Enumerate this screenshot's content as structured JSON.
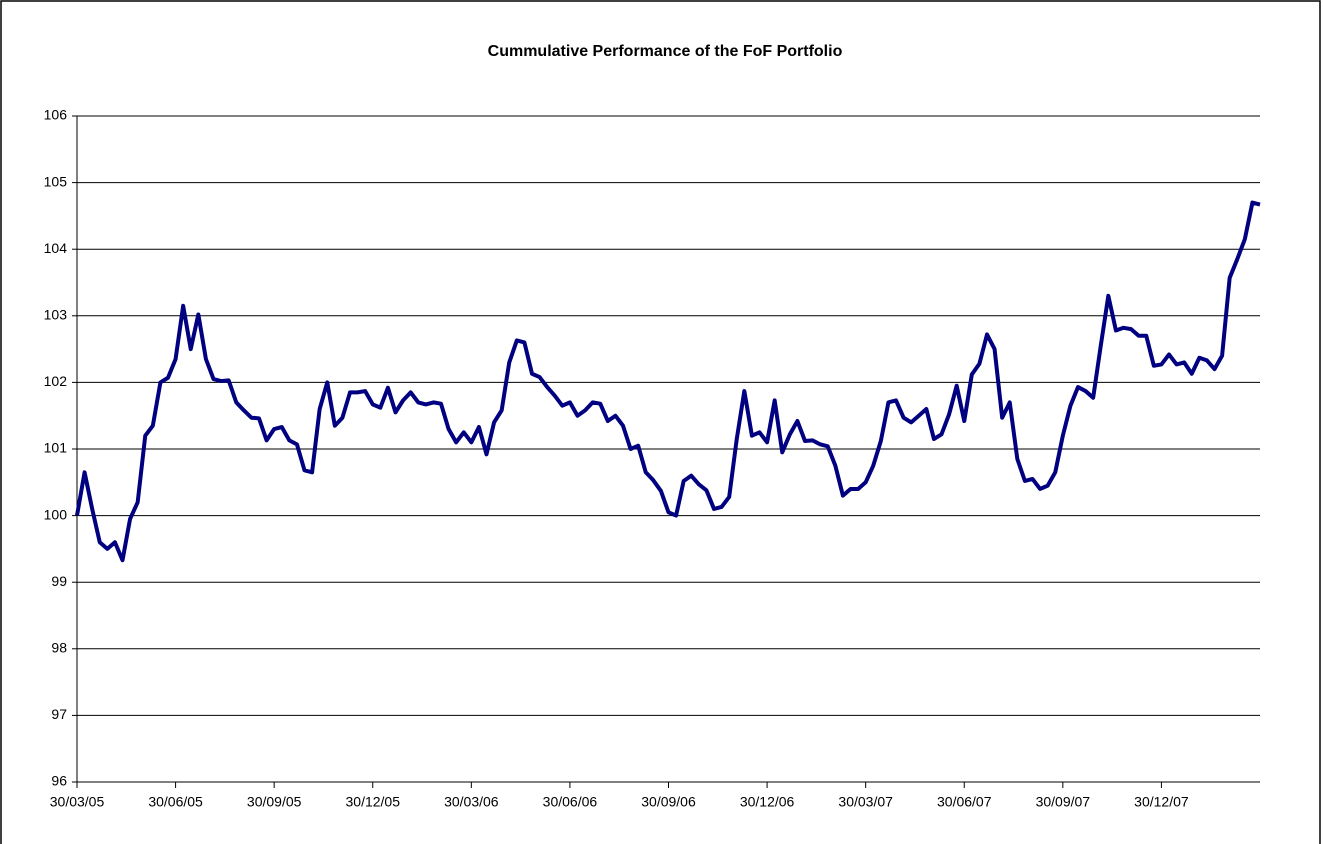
{
  "chart_data": {
    "type": "line",
    "title": "Cummulative Performance of the FoF Portfolio",
    "categories": [
      "30/03/05",
      null,
      null,
      null,
      null,
      null,
      null,
      null,
      null,
      null,
      null,
      null,
      null,
      "30/06/05",
      null,
      null,
      null,
      null,
      null,
      null,
      null,
      null,
      null,
      null,
      null,
      null,
      "30/09/05",
      null,
      null,
      null,
      null,
      null,
      null,
      null,
      null,
      null,
      null,
      null,
      null,
      "30/12/05",
      null,
      null,
      null,
      null,
      null,
      null,
      null,
      null,
      null,
      null,
      null,
      null,
      "30/03/06",
      null,
      null,
      null,
      null,
      null,
      null,
      null,
      null,
      null,
      null,
      null,
      null,
      "30/06/06",
      null,
      null,
      null,
      null,
      null,
      null,
      null,
      null,
      null,
      null,
      null,
      null,
      "30/09/06",
      null,
      null,
      null,
      null,
      null,
      null,
      null,
      null,
      null,
      null,
      null,
      null,
      "30/12/06",
      null,
      null,
      null,
      null,
      null,
      null,
      null,
      null,
      null,
      null,
      null,
      null,
      "30/03/07",
      null,
      null,
      null,
      null,
      null,
      null,
      null,
      null,
      null,
      null,
      null,
      null,
      "30/06/07",
      null,
      null,
      null,
      null,
      null,
      null,
      null,
      null,
      null,
      null,
      null,
      null,
      "30/09/07",
      null,
      null,
      null,
      null,
      null,
      null,
      null,
      null,
      null,
      null,
      null,
      null,
      "30/12/07",
      null,
      null,
      null,
      null,
      null,
      null,
      null,
      null,
      null,
      null,
      null,
      null,
      null
    ],
    "values": [
      100.0,
      100.65,
      100.1,
      99.6,
      99.5,
      99.6,
      99.33,
      99.95,
      100.2,
      101.2,
      101.35,
      102.0,
      102.07,
      102.35,
      103.15,
      102.5,
      103.02,
      102.35,
      102.05,
      102.02,
      102.03,
      101.7,
      101.58,
      101.47,
      101.46,
      101.13,
      101.3,
      101.33,
      101.13,
      101.07,
      100.68,
      100.65,
      101.6,
      102.0,
      101.35,
      101.47,
      101.85,
      101.85,
      101.87,
      101.67,
      101.62,
      101.92,
      101.55,
      101.73,
      101.85,
      101.7,
      101.67,
      101.7,
      101.68,
      101.3,
      101.1,
      101.25,
      101.1,
      101.33,
      100.92,
      101.4,
      101.58,
      102.3,
      102.63,
      102.6,
      102.13,
      102.08,
      101.93,
      101.8,
      101.65,
      101.7,
      101.5,
      101.58,
      101.7,
      101.68,
      101.42,
      101.5,
      101.35,
      101.0,
      101.05,
      100.65,
      100.53,
      100.37,
      100.05,
      100.0,
      100.52,
      100.6,
      100.47,
      100.38,
      100.1,
      100.13,
      100.28,
      101.15,
      101.87,
      101.2,
      101.25,
      101.1,
      101.73,
      100.95,
      101.22,
      101.42,
      101.12,
      101.13,
      101.07,
      101.04,
      100.75,
      100.3,
      100.4,
      100.4,
      100.5,
      100.75,
      101.12,
      101.7,
      101.73,
      101.47,
      101.4,
      101.5,
      101.6,
      101.15,
      101.22,
      101.52,
      101.95,
      101.42,
      102.12,
      102.28,
      102.72,
      102.5,
      101.47,
      101.7,
      100.85,
      100.52,
      100.55,
      100.4,
      100.45,
      100.65,
      101.2,
      101.65,
      101.93,
      101.87,
      101.77,
      102.55,
      103.3,
      102.78,
      102.82,
      102.8,
      102.7,
      102.7,
      102.25,
      102.27,
      102.42,
      102.27,
      102.3,
      102.13,
      102.37,
      102.33,
      102.2,
      102.4,
      103.57,
      103.85,
      104.15,
      104.7,
      104.67
    ],
    "color": "#000080",
    "ylim": [
      96,
      106
    ],
    "yticks": [
      96,
      97,
      98,
      99,
      100,
      101,
      102,
      103,
      104,
      105,
      106
    ],
    "grid": true
  }
}
